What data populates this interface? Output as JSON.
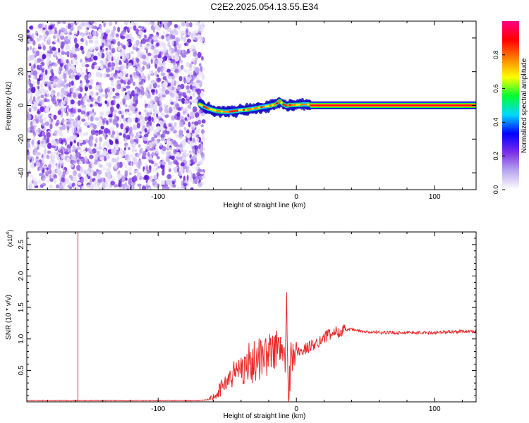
{
  "title": "C2E2.2025.054.13.55.E34",
  "chart_data": [
    {
      "type": "heatmap",
      "xlabel": "Height of straight line (km)",
      "ylabel": "Frequency (Hz)",
      "xlim": [
        -195,
        130
      ],
      "ylim": [
        -50,
        50
      ],
      "xticks": [
        -100,
        0,
        100
      ],
      "xtick_labels": [
        "-100",
        "0",
        "100"
      ],
      "yticks": [
        -40,
        -20,
        0,
        20,
        40
      ],
      "ytick_labels": [
        "-40",
        "-20",
        "0",
        "20",
        "40"
      ],
      "noise_region_x": [
        -195,
        -67
      ],
      "ridge": {
        "x": [
          -70,
          -65,
          -60,
          -55,
          -50,
          -45,
          -40,
          -35,
          -30,
          -25,
          -20,
          -15,
          -12,
          -10,
          -7,
          -5,
          0,
          5,
          10
        ],
        "y": [
          0.5,
          -1.5,
          -2.8,
          -3.6,
          -3.8,
          -3.4,
          -2.8,
          -2.5,
          -1.8,
          -1.0,
          -0.3,
          0.5,
          2.8,
          0.8,
          -0.3,
          0.2,
          0.3,
          0.6,
          0.5
        ]
      },
      "tone": {
        "x": [
          10,
          130
        ],
        "y": 0
      },
      "colorbar": {
        "label": "Normalized spectral amplitude",
        "range": [
          0,
          1
        ],
        "ticks": [
          0.0,
          0.2,
          0.4,
          0.6,
          0.8
        ],
        "tick_labels": [
          "0.0",
          "0.2",
          "0.4",
          "0.6",
          "0.8"
        ],
        "colors": [
          "#ffffff",
          "#b8a8ee",
          "#7a2ee8",
          "#0000ff",
          "#00d8ff",
          "#00ff30",
          "#ffff00",
          "#ff8000",
          "#ff0000",
          "#ff0080"
        ]
      }
    },
    {
      "type": "line",
      "xlabel": "Height of straight line (km)",
      "ylabel": "SNR (10 * v/v)",
      "y_multiplier_label": "(x10",
      "y_multiplier_exponent": "4",
      "y_multiplier_close": ")",
      "xlim": [
        -195,
        130
      ],
      "ylim": [
        0,
        2.7
      ],
      "xticks": [
        -100,
        0,
        100
      ],
      "xtick_labels": [
        "-100",
        "0",
        "100"
      ],
      "yticks": [
        0.5,
        1.0,
        1.5,
        2.0,
        2.5
      ],
      "ytick_labels": [
        "0.5",
        "1.0",
        "1.5",
        "2.0",
        "2.5"
      ],
      "line_color": "#e82828",
      "series": [
        {
          "x": [
            -195,
            -170,
            -160,
            -158,
            -155,
            -140,
            -120,
            -100,
            -80,
            -70,
            -65,
            -60,
            -55,
            -50,
            -45,
            -40,
            -35,
            -30,
            -25,
            -20,
            -18,
            -15,
            -12,
            -10,
            -8,
            -7,
            -6,
            -5,
            -4,
            -3,
            0,
            5,
            10,
            15,
            20,
            25,
            30,
            35,
            40,
            50,
            60,
            70,
            80,
            90,
            100,
            110,
            120,
            130
          ],
          "y": [
            0.02,
            0.02,
            0.02,
            0.02,
            0.02,
            0.02,
            0.02,
            0.02,
            0.02,
            0.02,
            0.03,
            0.08,
            0.2,
            0.35,
            0.45,
            0.55,
            0.6,
            0.65,
            0.72,
            0.75,
            0.8,
            0.85,
            0.8,
            0.78,
            0.7,
            1.52,
            0.1,
            0.4,
            0.65,
            0.75,
            0.78,
            0.82,
            0.88,
            0.95,
            1.02,
            1.08,
            1.12,
            1.14,
            1.15,
            1.11,
            1.1,
            1.1,
            1.1,
            1.1,
            1.1,
            1.11,
            1.12,
            1.12
          ]
        }
      ],
      "spike": {
        "x": -158,
        "y": [
          0.02,
          2.7
        ]
      }
    }
  ]
}
